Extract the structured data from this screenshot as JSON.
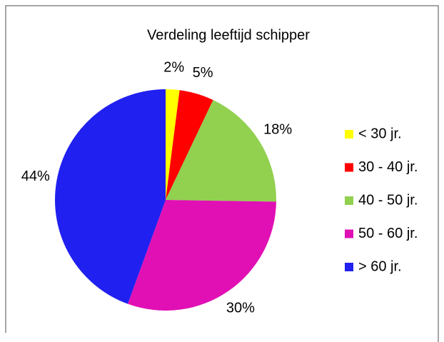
{
  "chart_data": {
    "type": "pie",
    "title": "Verdeling leeftijd schipper",
    "categories": [
      "< 30 jr.",
      "30 - 40 jr.",
      "40 - 50 jr.",
      "50 - 60 jr.",
      "> 60 jr."
    ],
    "values": [
      2,
      5,
      18,
      30,
      44
    ],
    "value_labels": [
      "2%",
      "5%",
      "18%",
      "30%",
      "44%"
    ],
    "colors": [
      "#ffff00",
      "#ff0000",
      "#92d050",
      "#e010b4",
      "#2020f0"
    ],
    "legend": "right"
  }
}
